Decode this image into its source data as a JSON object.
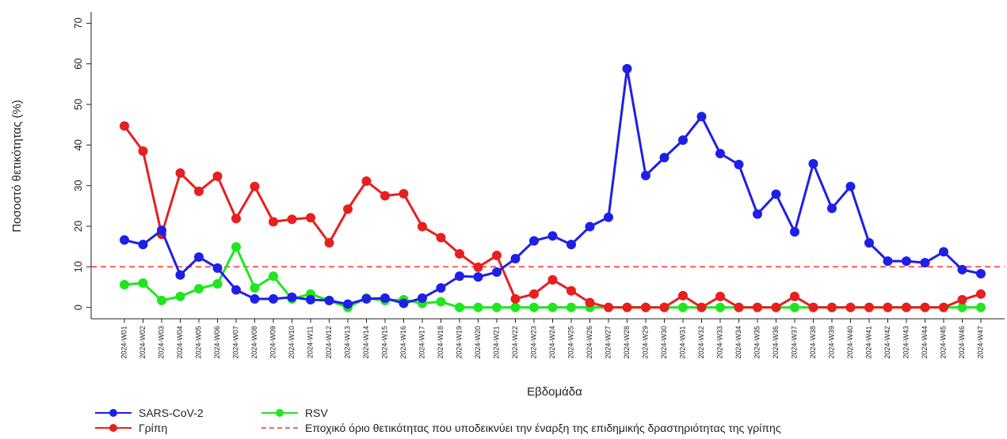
{
  "chart_data": {
    "type": "line",
    "xlabel": "Εβδομάδα",
    "ylabel": "Ποσοστό θετικότητας (%)",
    "categories": [
      "2024-W01",
      "2024-W02",
      "2024-W03",
      "2024-W04",
      "2024-W05",
      "2024-W06",
      "2024-W07",
      "2024-W08",
      "2024-W09",
      "2024-W10",
      "2024-W11",
      "2024-W12",
      "2024-W13",
      "2024-W14",
      "2024-W15",
      "2024-W16",
      "2024-W17",
      "2024-W18",
      "2024-W19",
      "2024-W20",
      "2024-W21",
      "2024-W22",
      "2024-W23",
      "2024-W24",
      "2024-W25",
      "2024-W26",
      "2024-W27",
      "2024-W28",
      "2024-W29",
      "2024-W30",
      "2024-W31",
      "2024-W32",
      "2024-W33",
      "2024-W34",
      "2024-W35",
      "2024-W36",
      "2024-W37",
      "2024-W38",
      "2024-W39",
      "2024-W40",
      "2024-W41",
      "2024-W42",
      "2024-W43",
      "2024-W44",
      "2024-W45",
      "2024-W46",
      "2024-W47"
    ],
    "series": [
      {
        "name": "SARS-CoV-2",
        "color": "#1f1fe6",
        "values": [
          16.6,
          15.5,
          19,
          8,
          12.4,
          9.7,
          4.3,
          2.1,
          2.1,
          2.5,
          1.9,
          1.7,
          0.8,
          2.1,
          2.3,
          1,
          2.3,
          4.8,
          7.7,
          7.5,
          8.7,
          12,
          16.4,
          17.6,
          15.5,
          19.9,
          22.2,
          58.8,
          32.5,
          36.9,
          41.2,
          47,
          37.9,
          35.2,
          23,
          27.9,
          18.6,
          35.4,
          24.4,
          29.8,
          15.9,
          11.4,
          11.4,
          11,
          13.7,
          9.3,
          8.3
        ]
      },
      {
        "name": "Γρίπη",
        "color": "#e61f1f",
        "values": [
          44.7,
          38.5,
          18,
          33.1,
          28.6,
          32.3,
          21.9,
          29.8,
          21.1,
          21.7,
          22.1,
          15.9,
          24.2,
          31.1,
          27.5,
          28,
          19.9,
          17.2,
          13.2,
          9.9,
          12.8,
          2.1,
          3.3,
          6.8,
          4.1,
          1.2,
          0,
          0,
          0,
          0,
          2.9,
          0,
          2.7,
          0,
          0,
          0,
          2.7,
          0,
          0,
          0,
          0,
          0,
          0,
          0,
          0,
          1.9,
          3.3
        ]
      },
      {
        "name": "RSV",
        "color": "#1fe61f",
        "values": [
          5.6,
          6,
          1.7,
          2.7,
          4.6,
          5.8,
          14.9,
          4.8,
          7.7,
          2.1,
          3.3,
          1.7,
          0,
          2.3,
          1.7,
          1.9,
          1,
          1.4,
          0,
          0,
          0,
          0,
          0,
          0,
          0,
          0,
          0,
          0,
          0,
          0,
          0,
          0,
          0,
          0,
          0,
          0,
          0,
          0,
          0,
          0,
          0,
          0,
          0,
          0,
          0,
          0,
          0
        ]
      }
    ],
    "threshold": {
      "value": 10,
      "color": "#ff3030",
      "label": "Εποχικό όριο θετικότητας που υποδεικνύει την έναρξη της επιδημικής δραστηριότητας της γρίπης"
    },
    "ylim": [
      -2.8,
      72.8
    ],
    "yticks": [
      0,
      10,
      20,
      30,
      40,
      50,
      60,
      70
    ]
  }
}
